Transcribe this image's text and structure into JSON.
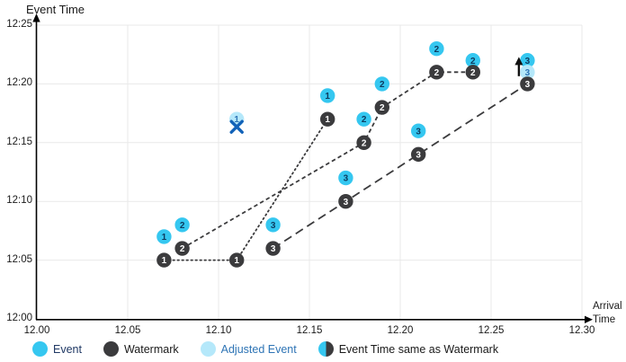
{
  "y_axis": {
    "title": "Event Time",
    "ticks": [
      "12:25",
      "12:20",
      "12:15",
      "12:10",
      "12:05",
      "12:00"
    ]
  },
  "x_axis": {
    "title_line1": "Arrival",
    "title_line2": "Time",
    "ticks": [
      "12.00",
      "12.05",
      "12.10",
      "12.15",
      "12.20",
      "12.25",
      "12.30"
    ]
  },
  "colors": {
    "event": "#35C7F0",
    "watermark": "#3B3B3D",
    "adjusted_event": "#B5E8FA",
    "event_digit": "#0D3A5E",
    "watermark_digit": "#FFFFFF",
    "adjusted_digit": "#2E74B5",
    "cross": "#1262B8",
    "arrow": "#111111",
    "grid": "#E9E9E9",
    "axis": "#000000",
    "legend_event_text": "#1F3864",
    "legend_adjusted_text": "#2E74B5",
    "text": "#1A1A1A"
  },
  "chart_data": {
    "type": "scatter",
    "title": "",
    "xlabel": "Arrival Time",
    "ylabel": "Event Time",
    "x_range": [
      "12.00",
      "12.30"
    ],
    "y_range": [
      "12:00",
      "12:25"
    ],
    "grid": true,
    "series": [
      {
        "name": "Event",
        "marker": "event",
        "points": [
          {
            "label": "1",
            "arrival": "12.07",
            "event_time": "12:07"
          },
          {
            "label": "2",
            "arrival": "12.08",
            "event_time": "12:08"
          },
          {
            "label": "3",
            "arrival": "12.13",
            "event_time": "12:08"
          },
          {
            "label": "1",
            "arrival": "12.16",
            "event_time": "12:19"
          },
          {
            "label": "3",
            "arrival": "12.17",
            "event_time": "12:12"
          },
          {
            "label": "2",
            "arrival": "12.18",
            "event_time": "12:17"
          },
          {
            "label": "2",
            "arrival": "12.19",
            "event_time": "12:20"
          },
          {
            "label": "3",
            "arrival": "12.21",
            "event_time": "12:16"
          },
          {
            "label": "2",
            "arrival": "12.22",
            "event_time": "12:23"
          },
          {
            "label": "2",
            "arrival": "12.24",
            "event_time": "12:22"
          },
          {
            "label": "3",
            "arrival": "12.27",
            "event_time": "12:22"
          }
        ]
      },
      {
        "name": "Watermark",
        "marker": "watermark",
        "points": [
          {
            "label": "1",
            "arrival": "12.07",
            "event_time": "12:05"
          },
          {
            "label": "2",
            "arrival": "12.08",
            "event_time": "12:06"
          },
          {
            "label": "1",
            "arrival": "12.11",
            "event_time": "12:05"
          },
          {
            "label": "3",
            "arrival": "12.13",
            "event_time": "12:06"
          },
          {
            "label": "1",
            "arrival": "12.16",
            "event_time": "12:17"
          },
          {
            "label": "3",
            "arrival": "12.17",
            "event_time": "12:10"
          },
          {
            "label": "2",
            "arrival": "12.18",
            "event_time": "12:15"
          },
          {
            "label": "2",
            "arrival": "12.19",
            "event_time": "12:18"
          },
          {
            "label": "3",
            "arrival": "12.21",
            "event_time": "12:14"
          },
          {
            "label": "2",
            "arrival": "12.22",
            "event_time": "12:21"
          },
          {
            "label": "2",
            "arrival": "12.24",
            "event_time": "12:21"
          },
          {
            "label": "3",
            "arrival": "12.27",
            "event_time": "12:20"
          }
        ]
      },
      {
        "name": "Adjusted Event",
        "marker": "adjusted",
        "points": [
          {
            "label": "1",
            "arrival": "12.11",
            "event_time": "12:17"
          },
          {
            "label": "3",
            "arrival": "12.27",
            "event_time": "12:21"
          }
        ]
      }
    ],
    "watermark_lines": [
      {
        "id": "watermark-1",
        "style": "dotted",
        "points": [
          [
            "12.07",
            "12:05"
          ],
          [
            "12.11",
            "12:05"
          ],
          [
            "12.16",
            "12:17"
          ]
        ]
      },
      {
        "id": "watermark-2",
        "style": "dashed",
        "points": [
          [
            "12.08",
            "12:06"
          ],
          [
            "12.18",
            "12:15"
          ],
          [
            "12.19",
            "12:18"
          ],
          [
            "12.22",
            "12:21"
          ],
          [
            "12.24",
            "12:21"
          ]
        ]
      },
      {
        "id": "watermark-3",
        "style": "long-dash",
        "points": [
          [
            "12.13",
            "12:06"
          ],
          [
            "12.17",
            "12:10"
          ],
          [
            "12.21",
            "12:14"
          ],
          [
            "12.27",
            "12:20"
          ]
        ]
      }
    ],
    "annotations": [
      {
        "type": "x-cross",
        "arrival": "12.11",
        "event_time": "12:17"
      },
      {
        "type": "up-arrow",
        "arrival": "12.27",
        "event_time": "12:21"
      }
    ]
  },
  "legend": {
    "items": [
      {
        "label": "Event",
        "type": "event"
      },
      {
        "label": "Watermark",
        "type": "watermark"
      },
      {
        "label": "Adjusted Event",
        "type": "adjusted"
      },
      {
        "label": "Event Time same as Watermark",
        "type": "half"
      }
    ]
  }
}
